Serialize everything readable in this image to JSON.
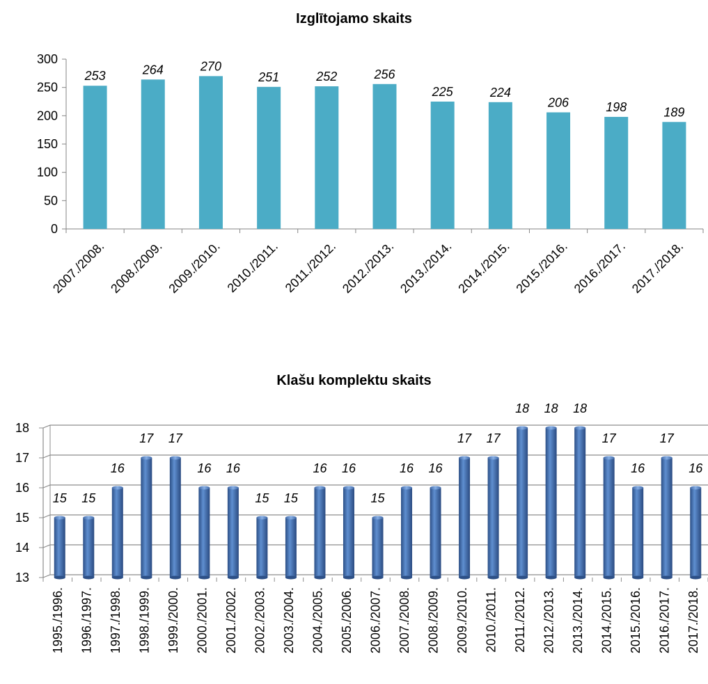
{
  "chart_data": [
    {
      "type": "bar",
      "title": "Izglītojamo skaits",
      "categories": [
        "2007./2008.",
        "2008./2009.",
        "2009./2010.",
        "2010./2011.",
        "2011./2012.",
        "2012./2013.",
        "2013./2014.",
        "2014./2015.",
        "2015./2016.",
        "2016./2017.",
        "2017./2018."
      ],
      "values": [
        253,
        264,
        270,
        251,
        252,
        256,
        225,
        224,
        206,
        198,
        189
      ],
      "yticks": [
        "0",
        "50",
        "100",
        "150",
        "200",
        "250",
        "300"
      ],
      "ylim": [
        0,
        300
      ],
      "grid": false,
      "color": "#4bacc6"
    },
    {
      "type": "bar",
      "title": "Klašu komplektu skaits",
      "categories": [
        "1995./1996.",
        "1996./1997.",
        "1997./1998.",
        "1998./1999.",
        "1999./2000.",
        "2000./2001.",
        "2001./2002.",
        "2002./2003.",
        "2003./2004.",
        "2004./2005.",
        "2005./2006.",
        "2006./2007.",
        "2007./2008.",
        "2008./2009.",
        "2009./2010.",
        "2010./2011.",
        "2011./2012.",
        "2012./2013.",
        "2013./2014.",
        "2014./2015.",
        "2015./2016.",
        "2016./2017.",
        "2017./2018."
      ],
      "values": [
        15,
        15,
        16,
        17,
        17,
        16,
        16,
        15,
        15,
        16,
        16,
        15,
        16,
        16,
        17,
        17,
        18,
        18,
        18,
        17,
        16,
        17,
        16
      ],
      "yticks": [
        "13",
        "14",
        "15",
        "16",
        "17",
        "18"
      ],
      "ylim": [
        13,
        18
      ],
      "grid": true,
      "color": "#4f81bd"
    }
  ]
}
